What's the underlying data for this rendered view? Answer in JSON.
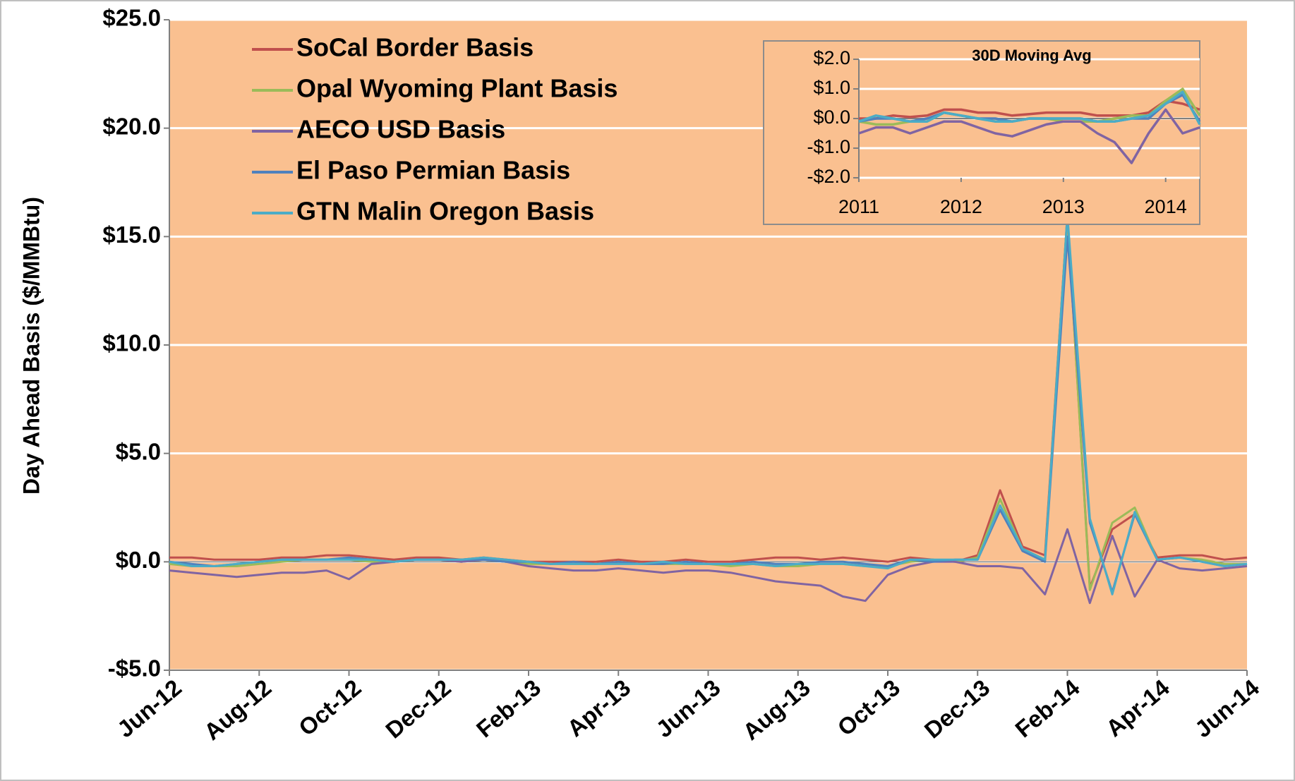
{
  "chart_data": [
    {
      "type": "line",
      "y_label": "Day Ahead Basis ($/MMBtu)",
      "categories": [
        "Jun-12",
        null,
        null,
        null,
        "Aug-12",
        null,
        null,
        null,
        "Oct-12",
        null,
        null,
        null,
        "Dec-12",
        null,
        null,
        null,
        "Feb-13",
        null,
        null,
        null,
        "Apr-13",
        null,
        null,
        null,
        "Jun-13",
        null,
        null,
        null,
        "Aug-13",
        null,
        null,
        null,
        "Oct-13",
        null,
        null,
        null,
        "Dec-13",
        null,
        null,
        null,
        "Feb-14",
        null,
        null,
        null,
        "Apr-14",
        null,
        null,
        null,
        "Jun-14"
      ],
      "ylim": [
        -5,
        25
      ],
      "yticks": [
        {
          "value": -5,
          "label": "-$5.0"
        },
        {
          "value": 0,
          "label": "$0.0"
        },
        {
          "value": 5,
          "label": "$5.0"
        },
        {
          "value": 10,
          "label": "$10.0"
        },
        {
          "value": 15,
          "label": "$15.0"
        },
        {
          "value": 20,
          "label": "$20.0"
        },
        {
          "value": 25,
          "label": "$25.0"
        }
      ],
      "grid": true,
      "legend": "upper left",
      "series": [
        {
          "name": "SoCal Border Basis",
          "color": "#c0504d",
          "values": [
            0.2,
            0.2,
            0.1,
            0.1,
            0.1,
            0.2,
            0.2,
            0.3,
            0.3,
            0.2,
            0.1,
            0.2,
            0.2,
            0.1,
            0.2,
            0.1,
            0.0,
            0.0,
            0.0,
            0.0,
            0.1,
            0.0,
            0.0,
            0.1,
            0.0,
            0.0,
            0.1,
            0.2,
            0.2,
            0.1,
            0.2,
            0.1,
            0.0,
            0.2,
            0.1,
            0.0,
            0.3,
            3.3,
            0.7,
            0.3,
            16.0,
            -1.2,
            1.5,
            2.2,
            0.2,
            0.3,
            0.3,
            0.1,
            0.2
          ]
        },
        {
          "name": "Opal Wyoming Plant Basis",
          "color": "#9bbb59",
          "values": [
            -0.1,
            -0.2,
            -0.2,
            -0.2,
            -0.1,
            0.0,
            0.1,
            0.1,
            0.1,
            0.0,
            0.0,
            0.1,
            0.1,
            0.0,
            0.1,
            0.0,
            -0.1,
            -0.1,
            -0.1,
            -0.1,
            0.0,
            -0.1,
            -0.1,
            -0.1,
            -0.1,
            -0.2,
            -0.1,
            -0.2,
            -0.2,
            -0.1,
            -0.1,
            -0.2,
            -0.2,
            0.0,
            0.1,
            0.0,
            0.2,
            2.9,
            0.6,
            0.1,
            16.0,
            -1.3,
            1.8,
            2.5,
            0.1,
            0.2,
            0.1,
            -0.1,
            -0.1
          ]
        },
        {
          "name": "AECO USD Basis",
          "color": "#8064a2",
          "values": [
            -0.4,
            -0.5,
            -0.6,
            -0.7,
            -0.6,
            -0.5,
            -0.5,
            -0.4,
            -0.8,
            -0.1,
            0.0,
            0.1,
            0.1,
            0.0,
            0.1,
            0.0,
            -0.2,
            -0.3,
            -0.4,
            -0.4,
            -0.3,
            -0.4,
            -0.5,
            -0.4,
            -0.4,
            -0.5,
            -0.7,
            -0.9,
            -1.0,
            -1.1,
            -1.6,
            -1.8,
            -0.6,
            -0.2,
            0.0,
            0.0,
            -0.2,
            -0.2,
            -0.3,
            -1.5,
            1.5,
            -1.9,
            1.2,
            -1.6,
            0.1,
            -0.3,
            -0.4,
            -0.3,
            -0.2
          ]
        },
        {
          "name": "El Paso Permian Basis",
          "color": "#4f81bd",
          "values": [
            0.0,
            -0.1,
            -0.2,
            -0.1,
            0.0,
            0.1,
            0.1,
            0.1,
            0.2,
            0.1,
            0.0,
            0.1,
            0.1,
            0.1,
            0.1,
            0.0,
            0.0,
            -0.1,
            0.0,
            -0.1,
            0.0,
            -0.1,
            -0.1,
            0.0,
            -0.1,
            -0.1,
            0.0,
            -0.1,
            -0.1,
            0.0,
            0.0,
            -0.1,
            -0.2,
            0.1,
            0.0,
            0.1,
            0.1,
            2.4,
            0.5,
            0.0,
            15.0,
            1.8,
            -1.4,
            2.2,
            0.1,
            0.2,
            0.0,
            -0.2,
            -0.1
          ]
        },
        {
          "name": "GTN Malin Oregon Basis",
          "color": "#4bacc6",
          "values": [
            0.0,
            -0.2,
            -0.2,
            -0.1,
            0.0,
            0.1,
            0.1,
            0.1,
            0.1,
            0.1,
            0.0,
            0.1,
            0.1,
            0.1,
            0.2,
            0.1,
            0.0,
            -0.1,
            -0.1,
            -0.1,
            -0.1,
            -0.1,
            0.0,
            -0.1,
            -0.1,
            -0.1,
            -0.1,
            -0.2,
            -0.1,
            -0.1,
            -0.1,
            -0.2,
            -0.3,
            0.1,
            0.1,
            0.1,
            0.1,
            2.6,
            0.6,
            0.1,
            16.0,
            2.0,
            -1.5,
            2.3,
            0.1,
            0.2,
            0.0,
            -0.2,
            -0.1
          ]
        }
      ]
    },
    {
      "type": "line",
      "title": "30D Moving Avg",
      "categories": [
        "2011",
        null,
        null,
        null,
        null,
        null,
        "2012",
        null,
        null,
        null,
        null,
        null,
        "2013",
        null,
        null,
        null,
        null,
        null,
        "2014",
        null,
        null
      ],
      "ylim": [
        -2,
        2
      ],
      "yticks": [
        {
          "value": -2,
          "label": "-$2.0"
        },
        {
          "value": -1,
          "label": "-$1.0"
        },
        {
          "value": 0,
          "label": "$0.0"
        },
        {
          "value": 1,
          "label": "$1.0"
        },
        {
          "value": 2,
          "label": "$2.0"
        }
      ],
      "grid": true,
      "series": [
        {
          "name": "SoCal Border Basis",
          "color": "#c0504d",
          "values": [
            0,
            0,
            0.1,
            0.05,
            0.1,
            0.3,
            0.3,
            0.2,
            0.2,
            0.1,
            0.15,
            0.2,
            0.2,
            0.2,
            0.1,
            0.1,
            0.1,
            0.2,
            0.6,
            0.5,
            0.3
          ]
        },
        {
          "name": "Opal Wyoming Plant Basis",
          "color": "#9bbb59",
          "values": [
            -0.1,
            -0.2,
            -0.2,
            -0.1,
            -0.1,
            0.2,
            0.1,
            0.0,
            -0.1,
            -0.1,
            0,
            0,
            -0.1,
            -0.1,
            -0.1,
            0,
            0.1,
            0.1,
            0.6,
            1.0,
            0.1
          ]
        },
        {
          "name": "AECO USD Basis",
          "color": "#8064a2",
          "values": [
            -0.5,
            -0.3,
            -0.3,
            -0.5,
            -0.3,
            -0.1,
            -0.1,
            -0.3,
            -0.5,
            -0.6,
            -0.4,
            -0.2,
            -0.1,
            -0.1,
            -0.5,
            -0.8,
            -1.5,
            -0.5,
            0.3,
            -0.5,
            -0.3
          ]
        },
        {
          "name": "El Paso Permian Basis",
          "color": "#4f81bd",
          "values": [
            -0.1,
            0,
            0,
            -0.1,
            0,
            0.2,
            0.1,
            0,
            0,
            -0.1,
            0,
            0,
            0,
            0,
            -0.1,
            -0.1,
            0,
            0,
            0.5,
            0.8,
            -0.1
          ]
        },
        {
          "name": "GTN Malin Oregon Basis",
          "color": "#4bacc6",
          "values": [
            -0.1,
            0.1,
            0,
            -0.1,
            -0.1,
            0.2,
            0.1,
            0,
            -0.1,
            -0.1,
            0,
            0,
            0,
            0,
            -0.1,
            -0.1,
            0,
            0.1,
            0.5,
            0.9,
            -0.2
          ]
        }
      ]
    }
  ]
}
